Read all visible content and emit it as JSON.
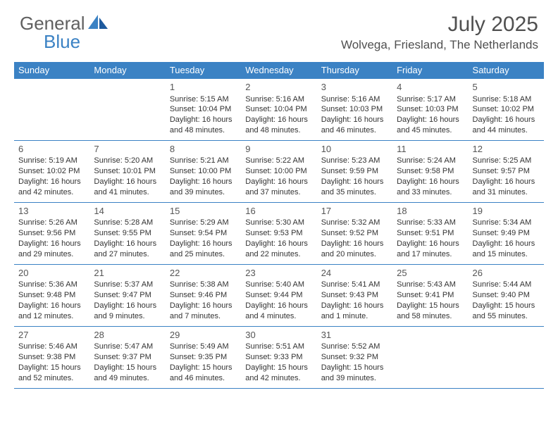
{
  "brand": {
    "general": "General",
    "blue": "Blue"
  },
  "title": "July 2025",
  "location": "Wolvega, Friesland, The Netherlands",
  "day_names": [
    "Sunday",
    "Monday",
    "Tuesday",
    "Wednesday",
    "Thursday",
    "Friday",
    "Saturday"
  ],
  "colors": {
    "header_bg": "#3b82c4",
    "header_text": "#ffffff",
    "title_text": "#505050",
    "body_bg": "#ffffff",
    "cell_text": "#333333",
    "border": "#3b82c4",
    "logo_gray": "#606060",
    "logo_blue": "#3b82c4"
  },
  "weeks": [
    [
      null,
      null,
      {
        "n": "1",
        "sr": "5:15 AM",
        "ss": "10:04 PM",
        "dl": "16 hours and 48 minutes."
      },
      {
        "n": "2",
        "sr": "5:16 AM",
        "ss": "10:04 PM",
        "dl": "16 hours and 48 minutes."
      },
      {
        "n": "3",
        "sr": "5:16 AM",
        "ss": "10:03 PM",
        "dl": "16 hours and 46 minutes."
      },
      {
        "n": "4",
        "sr": "5:17 AM",
        "ss": "10:03 PM",
        "dl": "16 hours and 45 minutes."
      },
      {
        "n": "5",
        "sr": "5:18 AM",
        "ss": "10:02 PM",
        "dl": "16 hours and 44 minutes."
      }
    ],
    [
      {
        "n": "6",
        "sr": "5:19 AM",
        "ss": "10:02 PM",
        "dl": "16 hours and 42 minutes."
      },
      {
        "n": "7",
        "sr": "5:20 AM",
        "ss": "10:01 PM",
        "dl": "16 hours and 41 minutes."
      },
      {
        "n": "8",
        "sr": "5:21 AM",
        "ss": "10:00 PM",
        "dl": "16 hours and 39 minutes."
      },
      {
        "n": "9",
        "sr": "5:22 AM",
        "ss": "10:00 PM",
        "dl": "16 hours and 37 minutes."
      },
      {
        "n": "10",
        "sr": "5:23 AM",
        "ss": "9:59 PM",
        "dl": "16 hours and 35 minutes."
      },
      {
        "n": "11",
        "sr": "5:24 AM",
        "ss": "9:58 PM",
        "dl": "16 hours and 33 minutes."
      },
      {
        "n": "12",
        "sr": "5:25 AM",
        "ss": "9:57 PM",
        "dl": "16 hours and 31 minutes."
      }
    ],
    [
      {
        "n": "13",
        "sr": "5:26 AM",
        "ss": "9:56 PM",
        "dl": "16 hours and 29 minutes."
      },
      {
        "n": "14",
        "sr": "5:28 AM",
        "ss": "9:55 PM",
        "dl": "16 hours and 27 minutes."
      },
      {
        "n": "15",
        "sr": "5:29 AM",
        "ss": "9:54 PM",
        "dl": "16 hours and 25 minutes."
      },
      {
        "n": "16",
        "sr": "5:30 AM",
        "ss": "9:53 PM",
        "dl": "16 hours and 22 minutes."
      },
      {
        "n": "17",
        "sr": "5:32 AM",
        "ss": "9:52 PM",
        "dl": "16 hours and 20 minutes."
      },
      {
        "n": "18",
        "sr": "5:33 AM",
        "ss": "9:51 PM",
        "dl": "16 hours and 17 minutes."
      },
      {
        "n": "19",
        "sr": "5:34 AM",
        "ss": "9:49 PM",
        "dl": "16 hours and 15 minutes."
      }
    ],
    [
      {
        "n": "20",
        "sr": "5:36 AM",
        "ss": "9:48 PM",
        "dl": "16 hours and 12 minutes."
      },
      {
        "n": "21",
        "sr": "5:37 AM",
        "ss": "9:47 PM",
        "dl": "16 hours and 9 minutes."
      },
      {
        "n": "22",
        "sr": "5:38 AM",
        "ss": "9:46 PM",
        "dl": "16 hours and 7 minutes."
      },
      {
        "n": "23",
        "sr": "5:40 AM",
        "ss": "9:44 PM",
        "dl": "16 hours and 4 minutes."
      },
      {
        "n": "24",
        "sr": "5:41 AM",
        "ss": "9:43 PM",
        "dl": "16 hours and 1 minute."
      },
      {
        "n": "25",
        "sr": "5:43 AM",
        "ss": "9:41 PM",
        "dl": "15 hours and 58 minutes."
      },
      {
        "n": "26",
        "sr": "5:44 AM",
        "ss": "9:40 PM",
        "dl": "15 hours and 55 minutes."
      }
    ],
    [
      {
        "n": "27",
        "sr": "5:46 AM",
        "ss": "9:38 PM",
        "dl": "15 hours and 52 minutes."
      },
      {
        "n": "28",
        "sr": "5:47 AM",
        "ss": "9:37 PM",
        "dl": "15 hours and 49 minutes."
      },
      {
        "n": "29",
        "sr": "5:49 AM",
        "ss": "9:35 PM",
        "dl": "15 hours and 46 minutes."
      },
      {
        "n": "30",
        "sr": "5:51 AM",
        "ss": "9:33 PM",
        "dl": "15 hours and 42 minutes."
      },
      {
        "n": "31",
        "sr": "5:52 AM",
        "ss": "9:32 PM",
        "dl": "15 hours and 39 minutes."
      },
      null,
      null
    ]
  ],
  "labels": {
    "sunrise": "Sunrise:",
    "sunset": "Sunset:",
    "daylight": "Daylight:"
  }
}
